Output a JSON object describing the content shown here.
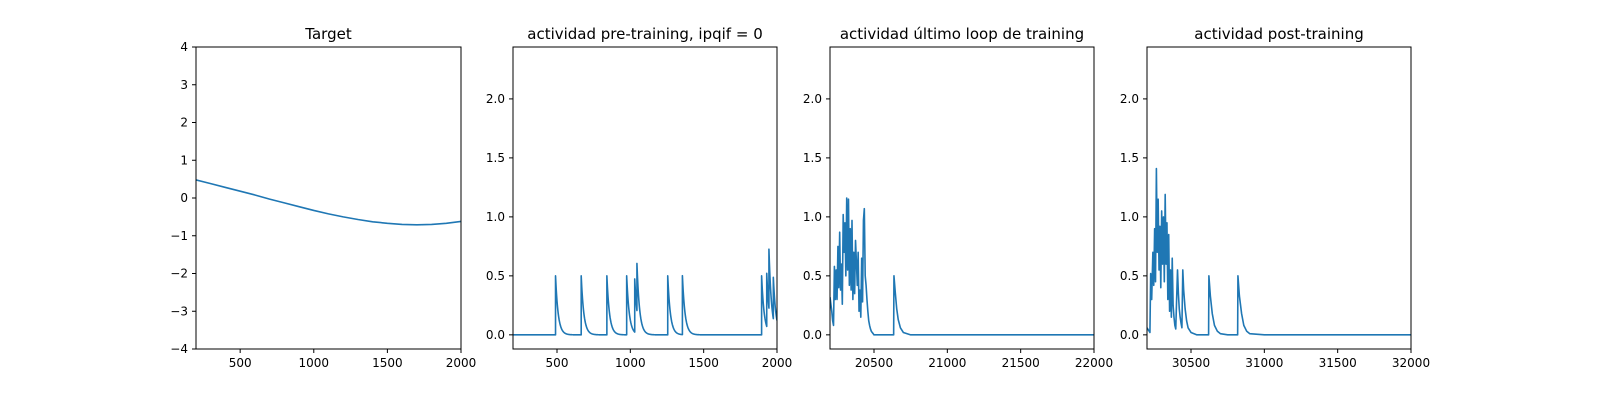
{
  "chart_data": [
    {
      "type": "line",
      "title": "Target",
      "xlim": [
        200,
        2000
      ],
      "ylim": [
        -4,
        4
      ],
      "xticks": [
        500,
        1000,
        1500,
        2000
      ],
      "yticks": [
        -4,
        -3,
        -2,
        -1,
        0,
        1,
        2,
        3,
        4
      ],
      "xtick_labels": [
        "500",
        "1000",
        "1500",
        "2000"
      ],
      "ytick_labels": [
        "−4",
        "−3",
        "−2",
        "−1",
        "0",
        "1",
        "2",
        "3",
        "4"
      ],
      "color": "#1f77b4",
      "series": [
        {
          "x": [
            200,
            300,
            400,
            500,
            600,
            700,
            800,
            900,
            1000,
            1100,
            1200,
            1300,
            1400,
            1500,
            1600,
            1700,
            1800,
            1900,
            2000
          ],
          "y": [
            0.48,
            0.38,
            0.28,
            0.18,
            0.08,
            -0.03,
            -0.13,
            -0.23,
            -0.33,
            -0.42,
            -0.5,
            -0.57,
            -0.63,
            -0.67,
            -0.7,
            -0.71,
            -0.7,
            -0.67,
            -0.62
          ]
        }
      ]
    },
    {
      "type": "line",
      "title": "actividad pre-training, ipqif = 0",
      "xlim": [
        200,
        2000
      ],
      "ylim": [
        -0.12,
        2.44
      ],
      "xticks": [
        500,
        1000,
        1500,
        2000
      ],
      "yticks": [
        0.0,
        0.5,
        1.0,
        1.5,
        2.0
      ],
      "xtick_labels": [
        "500",
        "1000",
        "1500",
        "2000"
      ],
      "ytick_labels": [
        "0.0",
        "0.5",
        "1.0",
        "1.5",
        "2.0"
      ],
      "color": "#1f77b4",
      "spikes": [
        {
          "t": 490,
          "h": 0.5
        },
        {
          "t": 665,
          "h": 0.5
        },
        {
          "t": 840,
          "h": 0.5
        },
        {
          "t": 975,
          "h": 0.5
        },
        {
          "t": 1030,
          "h": 0.45
        },
        {
          "t": 1045,
          "h": 0.4
        },
        {
          "t": 1255,
          "h": 0.5
        },
        {
          "t": 1355,
          "h": 0.5
        },
        {
          "t": 1895,
          "h": 0.5
        },
        {
          "t": 1930,
          "h": 0.45
        },
        {
          "t": 1945,
          "h": 0.5
        },
        {
          "t": 1975,
          "h": 0.35
        }
      ],
      "tau": 18,
      "t_end": 2000
    },
    {
      "type": "line",
      "title": "actividad último loop de training",
      "xlim": [
        20200,
        22000
      ],
      "ylim": [
        -0.12,
        2.44
      ],
      "xticks": [
        20500,
        21000,
        21500,
        22000
      ],
      "yticks": [
        0.0,
        0.5,
        1.0,
        1.5,
        2.0
      ],
      "xtick_labels": [
        "20500",
        "21000",
        "21500",
        "22000"
      ],
      "ytick_labels": [
        "0.0",
        "0.5",
        "1.0",
        "1.5",
        "2.0"
      ],
      "color": "#1f77b4",
      "series": [
        {
          "x": [
            20200,
            20212,
            20218,
            20224,
            20230,
            20236,
            20242,
            20248,
            20254,
            20260,
            20266,
            20272,
            20278,
            20284,
            20290,
            20296,
            20302,
            20308,
            20314,
            20320,
            20326,
            20332,
            20338,
            20344,
            20350,
            20356,
            20362,
            20368,
            20374,
            20380,
            20386,
            20392,
            20398,
            20404,
            20410,
            20416,
            20422,
            20428,
            20434,
            20440,
            20446,
            20452,
            20458,
            20464,
            20470,
            20476,
            20482,
            20488,
            20494,
            20500,
            20540,
            20580,
            20620,
            20634,
            20636,
            20645,
            20655,
            20665,
            20680,
            20700,
            20750,
            20850,
            21000,
            21500,
            22000
          ],
          "y": [
            0.32,
            0.2,
            0.12,
            0.08,
            0.58,
            0.3,
            0.55,
            0.3,
            0.75,
            0.4,
            0.87,
            0.38,
            0.6,
            0.26,
            1.02,
            0.7,
            0.95,
            0.5,
            1.16,
            0.55,
            1.15,
            0.42,
            0.9,
            0.38,
            0.97,
            0.3,
            0.7,
            0.35,
            0.8,
            0.62,
            0.42,
            0.7,
            0.2,
            0.38,
            0.15,
            0.65,
            0.28,
            0.97,
            1.07,
            0.5,
            0.42,
            0.3,
            0.2,
            0.12,
            0.08,
            0.05,
            0.03,
            0.02,
            0.01,
            0.0,
            0.0,
            0.0,
            0.0,
            0.0,
            0.5,
            0.36,
            0.22,
            0.13,
            0.06,
            0.02,
            0.0,
            0.0,
            0.0,
            0.0,
            0.0
          ]
        }
      ]
    },
    {
      "type": "line",
      "title": "actividad post-training",
      "xlim": [
        30200,
        32000
      ],
      "ylim": [
        -0.12,
        2.44
      ],
      "xticks": [
        30500,
        31000,
        31500,
        32000
      ],
      "yticks": [
        0.0,
        0.5,
        1.0,
        1.5,
        2.0
      ],
      "xtick_labels": [
        "30500",
        "31000",
        "31500",
        "32000"
      ],
      "ytick_labels": [
        "0.0",
        "0.5",
        "1.0",
        "1.5",
        "2.0"
      ],
      "color": "#1f77b4",
      "series": [
        {
          "x": [
            30200,
            30210,
            30220,
            30225,
            30232,
            30240,
            30246,
            30252,
            30258,
            30264,
            30270,
            30276,
            30282,
            30288,
            30294,
            30300,
            30306,
            30312,
            30318,
            30324,
            30330,
            30336,
            30342,
            30348,
            30354,
            30360,
            30366,
            30372,
            30378,
            30384,
            30390,
            30396,
            30402,
            30408,
            30414,
            30420,
            30426,
            30432,
            30438,
            30444,
            30450,
            30460,
            30470,
            30480,
            30500,
            30540,
            30580,
            30610,
            30620,
            30622,
            30632,
            30645,
            30660,
            30680,
            30700,
            30750,
            30800,
            30818,
            30820,
            30830,
            30845,
            30860,
            30880,
            30900,
            31000,
            31500,
            32000
          ],
          "y": [
            0.06,
            0.04,
            0.02,
            0.52,
            0.3,
            0.7,
            0.42,
            0.9,
            0.45,
            1.41,
            0.7,
            1.15,
            0.55,
            0.92,
            0.4,
            1.05,
            0.6,
            1.0,
            0.45,
            1.19,
            0.6,
            0.95,
            0.3,
            0.85,
            0.2,
            0.55,
            0.15,
            0.65,
            0.25,
            0.15,
            0.08,
            0.05,
            0.3,
            0.55,
            0.35,
            0.22,
            0.15,
            0.1,
            0.06,
            0.55,
            0.38,
            0.22,
            0.12,
            0.06,
            0.02,
            0.0,
            0.0,
            0.0,
            0.0,
            0.5,
            0.33,
            0.18,
            0.08,
            0.03,
            0.01,
            0.0,
            0.0,
            0.0,
            0.5,
            0.33,
            0.18,
            0.08,
            0.03,
            0.01,
            0.0,
            0.0,
            0.0
          ]
        }
      ]
    }
  ]
}
